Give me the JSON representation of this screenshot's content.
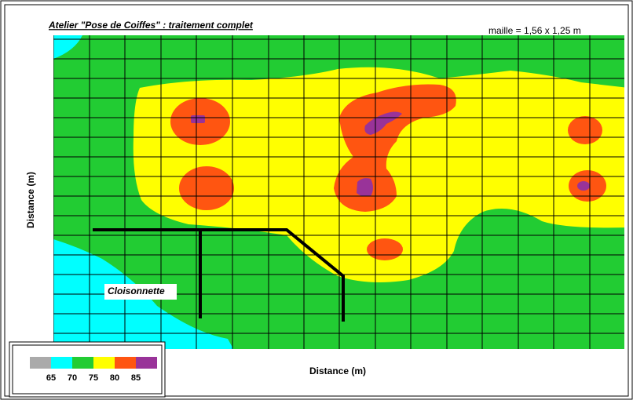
{
  "title": "Atelier \"Pose de Coiffes\" : traitement complet",
  "subtitle": "maille = 1,56 x 1,25 m",
  "x_label": "Distance (m)",
  "y_label": "Distance (m)",
  "annotation": "Cloisonnette",
  "legend": {
    "levels": [
      65,
      70,
      75,
      80,
      85
    ],
    "colors": [
      "#aaaaaa",
      "#00ffff",
      "#22cc33",
      "#ffff00",
      "#ff5511",
      "#993399"
    ]
  }
}
